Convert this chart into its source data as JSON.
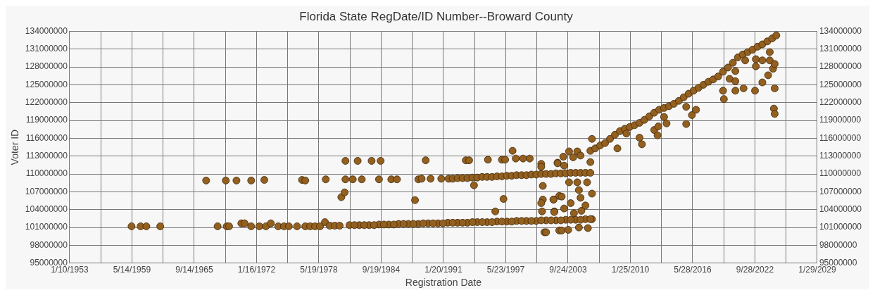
{
  "chart_data": {
    "type": "scatter",
    "title": "Florida State RegDate/ID Number--Broward County",
    "xlabel": "Registration Date",
    "ylabel": "Voter ID",
    "grid": true,
    "legend": false,
    "marker": "circle",
    "xlim": [
      "1953-01-10",
      "2029-01-29"
    ],
    "xticks": [
      {
        "value": "1953-01-10",
        "label": "1/10/1953"
      },
      {
        "value": "1956-03-13",
        "label": null
      },
      {
        "value": "1959-05-14",
        "label": "5/14/1959"
      },
      {
        "value": "1962-07-15",
        "label": null
      },
      {
        "value": "1965-09-14",
        "label": "9/14/1965"
      },
      {
        "value": "1968-11-15",
        "label": null
      },
      {
        "value": "1972-01-16",
        "label": "1/16/1972"
      },
      {
        "value": "1975-03-18",
        "label": null
      },
      {
        "value": "1978-05-19",
        "label": "5/19/1978"
      },
      {
        "value": "1981-07-19",
        "label": null
      },
      {
        "value": "1984-09-19",
        "label": "9/19/1984"
      },
      {
        "value": "1987-11-20",
        "label": null
      },
      {
        "value": "1991-01-20",
        "label": "1/20/1991"
      },
      {
        "value": "1994-03-22",
        "label": null
      },
      {
        "value": "1997-05-23",
        "label": "5/23/1997"
      },
      {
        "value": "2000-07-24",
        "label": null
      },
      {
        "value": "2003-09-24",
        "label": "9/24/2003"
      },
      {
        "value": "2006-11-24",
        "label": null
      },
      {
        "value": "2010-01-25",
        "label": "1/25/2010"
      },
      {
        "value": "2013-03-27",
        "label": null
      },
      {
        "value": "2016-05-28",
        "label": "5/28/2016"
      },
      {
        "value": "2019-07-29",
        "label": null
      },
      {
        "value": "2022-09-28",
        "label": "9/28/2022"
      },
      {
        "value": "2025-11-28",
        "label": null
      },
      {
        "value": "2029-01-29",
        "label": "1/29/2029"
      }
    ],
    "ylim": [
      95000000,
      134000000
    ],
    "yticks": [
      95000000,
      98000000,
      101000000,
      104000000,
      107000000,
      110000000,
      113000000,
      116000000,
      119000000,
      122000000,
      125000000,
      128000000,
      131000000,
      134000000
    ],
    "y2lim": [
      95000000,
      134000000
    ],
    "y2ticks": [
      95000000,
      98000000,
      101000000,
      104000000,
      107000000,
      110000000,
      113000000,
      116000000,
      119000000,
      122000000,
      125000000,
      128000000,
      131000000,
      134000000
    ],
    "series": [
      {
        "color": "#94601f",
        "x": [
          "1959-05",
          "1960-04",
          "1960-11",
          "1962-04",
          "1966-12",
          "1968-12",
          "1970-01",
          "1971-07",
          "1972-11",
          "1976-09",
          "1977-01",
          "1968-02",
          "1969-01",
          "1969-04",
          "1970-07",
          "1970-11",
          "1971-07",
          "1972-05",
          "1973-01",
          "1973-07",
          "1974-04",
          "1974-11",
          "1975-05",
          "1976-03",
          "1977-01",
          "1979-02",
          "1981-02",
          "1981-11",
          "1982-10",
          "1984-07",
          "1985-10",
          "1986-05",
          "1988-07",
          "1988-11",
          "1989-10",
          "1990-11",
          "1991-08",
          "1992-01",
          "1992-07",
          "1993-01",
          "1993-07",
          "1994-01",
          "1994-07",
          "1995-01",
          "1995-07",
          "1996-01",
          "1996-07",
          "1997-01",
          "1997-07",
          "1998-01",
          "1998-07",
          "1999-01",
          "1999-07",
          "2000-01",
          "2000-07",
          "2001-01",
          "2001-07",
          "2002-01",
          "2002-07",
          "2003-01",
          "2003-07",
          "2004-01",
          "2004-07",
          "2005-01",
          "2005-07",
          "2006-01",
          "1981-02",
          "1982-05",
          "1983-10",
          "1984-09",
          "1989-04",
          "1993-05",
          "1993-09",
          "1995-08",
          "1997-01",
          "1997-05",
          "1998-02",
          "1998-06",
          "1999-03",
          "1999-11",
          "1980-09",
          "1981-01",
          "1988-03",
          "1994-03",
          "1997-03",
          "1996-05",
          "2001-01",
          "2001-01",
          "2001-03",
          "2001-03",
          "2001-01",
          "2001-02",
          "2001-05",
          "2002-04",
          "2002-05",
          "2002-09",
          "2002-11",
          "2002-11",
          "1979-01",
          "2003-11",
          "2004-09",
          "2003-04",
          "2002-09",
          "2004-04",
          "2005-01",
          "2006-01",
          "2003-05",
          "2003-11",
          "2004-09",
          "2005-09",
          "2004-11",
          "2006-03",
          "2002-04",
          "2003-02",
          "2005-01",
          "2004-01",
          "2005-07",
          "2002-05",
          "2003-05",
          "2005-02",
          "2004-05",
          "2001-07",
          "2003-02",
          "2003-10",
          "2004-11",
          "2005-10",
          "2006-03",
          "1977-07",
          "1978-01",
          "1978-07",
          "1979-07",
          "1980-01",
          "1980-07",
          "1981-07",
          "1982-07",
          "1983-07",
          "1984-07",
          "1985-07",
          "1986-07",
          "1987-07",
          "1988-07",
          "1989-07",
          "1990-07",
          "1991-07",
          "1992-07",
          "1993-07",
          "1994-07",
          "1995-07",
          "1996-07",
          "1997-07",
          "1998-07",
          "1999-07",
          "2000-07",
          "2001-07",
          "2002-07",
          "2003-07",
          "2004-07",
          "2005-07",
          "2006-03",
          "1982-01",
          "1983-01",
          "1984-01",
          "1985-01",
          "1986-01",
          "1987-01",
          "1988-01",
          "1989-01",
          "1990-01",
          "1991-01",
          "1992-01",
          "1993-01",
          "1994-01",
          "1995-01",
          "1996-01",
          "1997-01",
          "1998-01",
          "1999-01",
          "2000-01",
          "2001-01",
          "2002-01",
          "2003-01",
          "2004-01",
          "2005-01",
          "2006-01",
          "2006-01",
          "2006-07",
          "2007-01",
          "2007-07",
          "2008-01",
          "2008-07",
          "2009-01",
          "2009-07",
          "2010-01",
          "2010-07",
          "2011-01",
          "2011-07",
          "2012-01",
          "2012-07",
          "2013-01",
          "2013-07",
          "2014-01",
          "2014-07",
          "2015-01",
          "2015-07",
          "2016-01",
          "2016-07",
          "2017-01",
          "2017-07",
          "2018-01",
          "2018-07",
          "2019-01",
          "2019-07",
          "2020-01",
          "2020-07",
          "2021-01",
          "2021-07",
          "2022-01",
          "2022-07",
          "2023-01",
          "2023-07",
          "2024-01",
          "2024-07",
          "2024-12",
          "2008-10",
          "2009-09",
          "2011-01",
          "2011-04",
          "2012-07",
          "2012-11",
          "2012-12",
          "2013-07",
          "2013-10",
          "2015-10",
          "2015-10",
          "2016-05",
          "2016-10",
          "2019-07",
          "2019-08",
          "2020-03",
          "2020-10",
          "2020-10",
          "2021-08",
          "2022-10",
          "2022-11",
          "2022-11",
          "2023-07",
          "2023-07",
          "2024-02",
          "2024-04",
          "2024-04",
          "2024-08",
          "2024-10",
          "2024-10",
          "2024-09",
          "2024-10",
          "2021-10",
          "2020-10"
        ],
        "values": [
          101200000,
          101200000,
          101200000,
          101200000,
          108900000,
          108900000,
          108900000,
          108900000,
          109000000,
          109000000,
          108900000,
          101200000,
          101200000,
          101200000,
          101700000,
          101700000,
          101200000,
          101200000,
          101200000,
          101700000,
          101200000,
          101200000,
          101200000,
          101200000,
          101200000,
          109100000,
          109100000,
          109100000,
          109100000,
          109100000,
          109100000,
          109100000,
          109100000,
          109200000,
          109200000,
          109200000,
          109200000,
          109200000,
          109300000,
          109300000,
          109300000,
          109400000,
          109400000,
          109500000,
          109500000,
          109500000,
          109600000,
          109600000,
          109700000,
          109700000,
          109800000,
          109800000,
          109800000,
          109900000,
          109900000,
          110000000,
          110000000,
          110000000,
          110100000,
          110100000,
          110100000,
          110200000,
          110200000,
          110200000,
          110200000,
          110200000,
          112200000,
          112200000,
          112200000,
          112200000,
          112300000,
          112300000,
          112300000,
          112400000,
          112400000,
          112400000,
          113900000,
          112600000,
          112600000,
          112600000,
          106100000,
          106900000,
          105600000,
          108100000,
          105800000,
          103700000,
          111700000,
          111200000,
          108000000,
          105700000,
          105100000,
          103700000,
          100200000,
          105700000,
          103700000,
          111900000,
          106300000,
          100500000,
          101900000,
          113800000,
          113800000,
          112900000,
          111800000,
          112800000,
          113100000,
          112000000,
          111400000,
          108600000,
          108600000,
          108600000,
          107300000,
          106700000,
          105700000,
          106200000,
          106000000,
          105100000,
          104700000,
          103600000,
          104200000,
          103800000,
          103400000,
          100200000,
          100500000,
          100600000,
          101000000,
          100900000,
          115900000,
          101200000,
          101200000,
          101200000,
          101300000,
          101300000,
          101300000,
          101400000,
          101400000,
          101400000,
          101500000,
          101500000,
          101600000,
          101600000,
          101600000,
          101700000,
          101700000,
          101800000,
          101800000,
          101800000,
          101900000,
          101900000,
          102000000,
          102000000,
          102100000,
          102100000,
          102100000,
          102200000,
          102200000,
          102300000,
          102300000,
          102400000,
          102400000,
          101400000,
          101400000,
          101400000,
          101500000,
          101500000,
          101600000,
          101600000,
          101700000,
          101700000,
          101700000,
          101800000,
          101800000,
          101900000,
          101900000,
          101900000,
          102000000,
          102000000,
          102100000,
          102100000,
          102200000,
          102200000,
          102200000,
          102300000,
          102300000,
          102400000,
          113900000,
          114300000,
          114800000,
          115200000,
          115900000,
          116600000,
          117200000,
          117600000,
          117900000,
          118200000,
          118600000,
          119100000,
          119700000,
          120300000,
          120800000,
          121100000,
          121400000,
          121800000,
          122300000,
          122900000,
          123500000,
          124000000,
          124500000,
          125000000,
          125500000,
          125900000,
          126400000,
          127200000,
          127900000,
          128700000,
          129600000,
          130100000,
          130500000,
          130900000,
          131400000,
          131800000,
          132300000,
          132800000,
          133300000,
          114300000,
          116800000,
          116100000,
          115000000,
          117400000,
          116500000,
          118000000,
          119600000,
          118500000,
          118400000,
          121300000,
          119900000,
          120800000,
          124000000,
          122600000,
          126000000,
          125600000,
          124000000,
          124400000,
          124000000,
          128100000,
          129300000,
          129100000,
          125400000,
          126600000,
          130500000,
          129100000,
          127700000,
          128500000,
          124400000,
          121000000,
          120100000,
          129100000,
          127300000
        ]
      }
    ]
  }
}
